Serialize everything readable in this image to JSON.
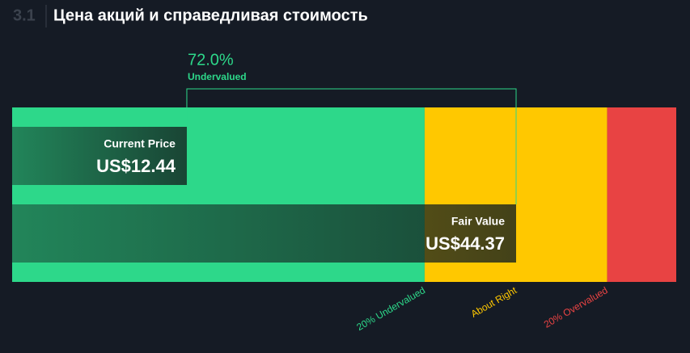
{
  "chart_data": {
    "type": "valuation",
    "section": "3.1",
    "title": "Цена акций и справедливая стоимость",
    "categories": [
      "Current Price",
      "Fair Value"
    ],
    "values": [
      12.44,
      44.37
    ],
    "value_labels": [
      "US$12.44",
      "US$44.37"
    ],
    "annotation": {
      "value": 72.0,
      "label": "72.0%",
      "text": "Undervalued"
    },
    "zones": [
      {
        "label": "20% Undervalued",
        "value": 35.5,
        "color": "#2dd88a"
      },
      {
        "label": "About Right",
        "value": 53.2,
        "color": "#ffc800"
      },
      {
        "label": "20% Overvalued",
        "color": "#e84343"
      }
    ],
    "xlim": [
      -4.5,
      59.9
    ]
  }
}
